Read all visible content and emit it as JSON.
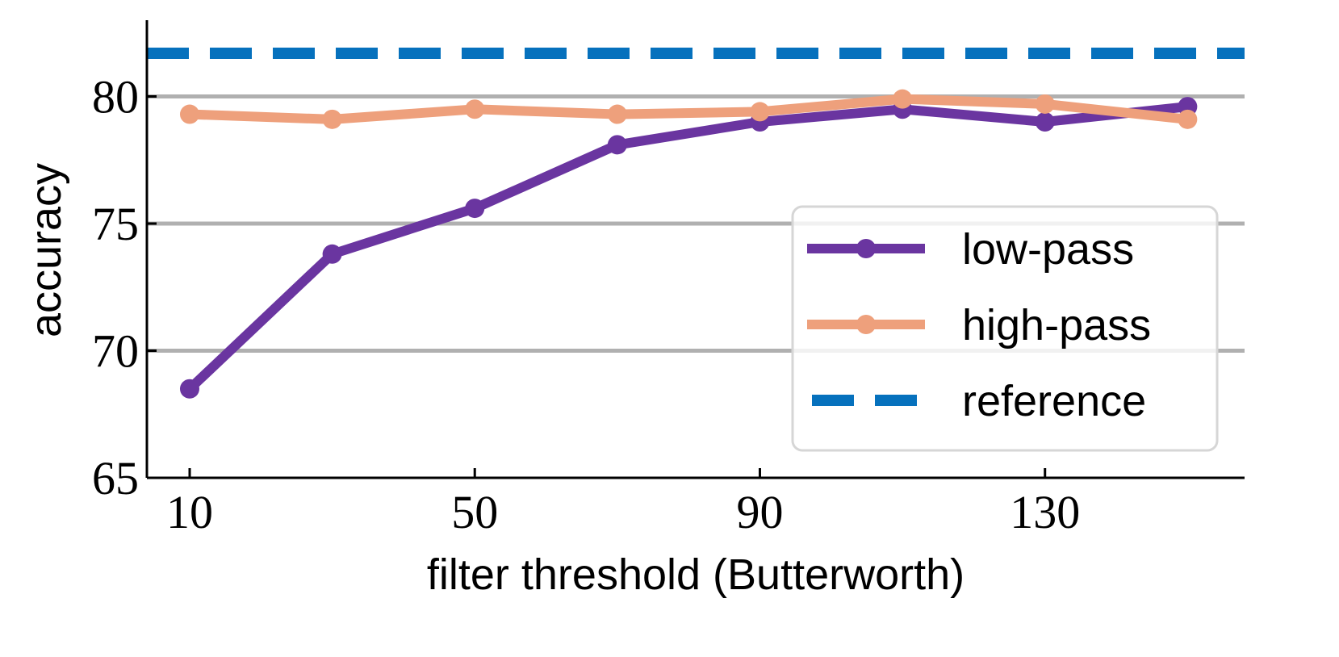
{
  "chart_data": {
    "type": "line",
    "xlabel": "filter threshold (Butterworth)",
    "ylabel": "accuracy",
    "xlim": [
      4,
      158
    ],
    "ylim": [
      65,
      83
    ],
    "xticks": [
      10,
      50,
      90,
      130
    ],
    "yticks": [
      65,
      70,
      75,
      80
    ],
    "x": [
      10,
      30,
      50,
      70,
      90,
      110,
      130,
      150
    ],
    "grid": "horizontal",
    "legend_position": "center-right",
    "series": [
      {
        "name": "low-pass",
        "color": "#6a35a0",
        "style": "solid-marker",
        "values": [
          68.5,
          73.8,
          75.6,
          78.1,
          79.0,
          79.5,
          79.0,
          79.6
        ]
      },
      {
        "name": "high-pass",
        "color": "#eea07c",
        "style": "solid-marker",
        "values": [
          79.3,
          79.1,
          79.5,
          79.3,
          79.4,
          79.9,
          79.7,
          79.1
        ]
      },
      {
        "name": "reference",
        "color": "#0671bd",
        "style": "dashed",
        "value": 81.7
      }
    ]
  }
}
